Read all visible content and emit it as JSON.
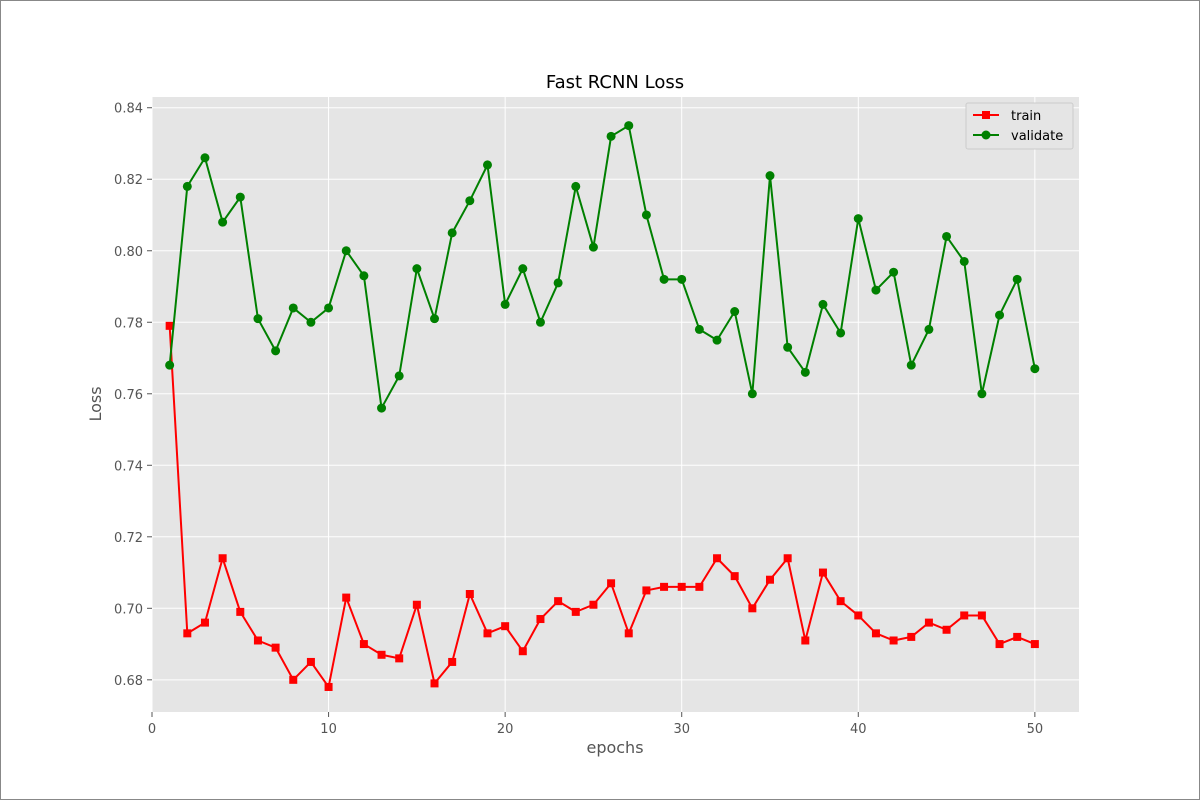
{
  "chart_data": {
    "type": "line",
    "title": "Fast RCNN Loss",
    "xlabel": "epochs",
    "ylabel": "Loss",
    "xlim": [
      0,
      52.5
    ],
    "ylim": [
      0.671,
      0.843
    ],
    "xticks": [
      0,
      10,
      20,
      30,
      40,
      50
    ],
    "yticks": [
      0.68,
      0.7,
      0.72,
      0.74,
      0.76,
      0.78,
      0.8,
      0.82,
      0.84
    ],
    "grid": true,
    "legend_position": "top-right",
    "x": [
      1,
      2,
      3,
      4,
      5,
      6,
      7,
      8,
      9,
      10,
      11,
      12,
      13,
      14,
      15,
      16,
      17,
      18,
      19,
      20,
      21,
      22,
      23,
      24,
      25,
      26,
      27,
      28,
      29,
      30,
      31,
      32,
      33,
      34,
      35,
      36,
      37,
      38,
      39,
      40,
      41,
      42,
      43,
      44,
      45,
      46,
      47,
      48,
      49,
      50
    ],
    "series": [
      {
        "name": "train",
        "color": "#ff0000",
        "marker": "square",
        "values": [
          0.779,
          0.693,
          0.696,
          0.714,
          0.699,
          0.691,
          0.689,
          0.68,
          0.685,
          0.678,
          0.703,
          0.69,
          0.687,
          0.686,
          0.701,
          0.679,
          0.685,
          0.704,
          0.693,
          0.695,
          0.688,
          0.697,
          0.702,
          0.699,
          0.701,
          0.707,
          0.693,
          0.705,
          0.706,
          0.706,
          0.706,
          0.714,
          0.709,
          0.7,
          0.708,
          0.714,
          0.691,
          0.71,
          0.702,
          0.698,
          0.693,
          0.691,
          0.692,
          0.696,
          0.694,
          0.698,
          0.698,
          0.69,
          0.692,
          0.69
        ]
      },
      {
        "name": "validate",
        "color": "#008000",
        "marker": "circle",
        "values": [
          0.768,
          0.818,
          0.826,
          0.808,
          0.815,
          0.781,
          0.772,
          0.784,
          0.78,
          0.784,
          0.8,
          0.793,
          0.756,
          0.765,
          0.795,
          0.781,
          0.805,
          0.814,
          0.824,
          0.785,
          0.795,
          0.78,
          0.791,
          0.818,
          0.801,
          0.832,
          0.835,
          0.81,
          0.792,
          0.792,
          0.778,
          0.775,
          0.783,
          0.76,
          0.821,
          0.773,
          0.766,
          0.785,
          0.777,
          0.809,
          0.789,
          0.794,
          0.768,
          0.778,
          0.804,
          0.797,
          0.76,
          0.782,
          0.792,
          0.767
        ]
      }
    ]
  }
}
